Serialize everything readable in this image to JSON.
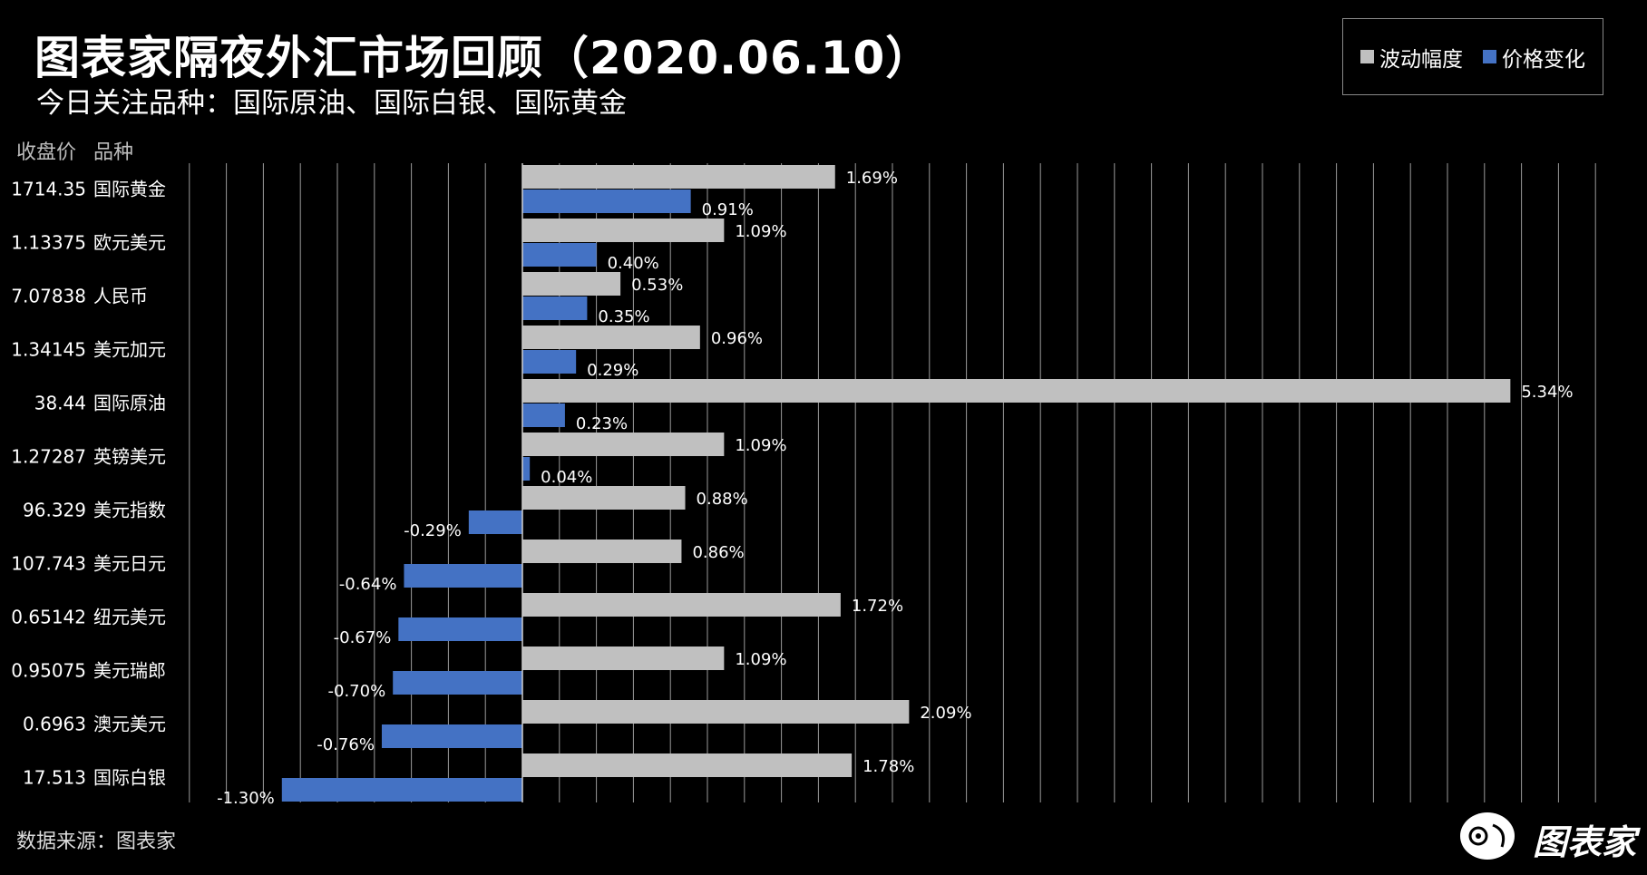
{
  "header": {
    "title": "图表家隔夜外汇市场回顾（2020.06.10）",
    "subtitle": "今日关注品种：国际原油、国际白银、国际黄金"
  },
  "columns": {
    "close_label": "收盘价",
    "category_label": "品种"
  },
  "legend": {
    "items": [
      {
        "label": "波动幅度",
        "color": "#c0c0c0"
      },
      {
        "label": "价格变化",
        "color": "#4472c4"
      }
    ],
    "position": "top-right"
  },
  "footer": {
    "source": "数据来源：图表家",
    "brand": "图表家"
  },
  "chart_data": {
    "type": "bar",
    "orientation": "horizontal",
    "categories": [
      "国际黄金",
      "欧元美元",
      "人民币",
      "美元加元",
      "国际原油",
      "英镑美元",
      "美元指数",
      "美元日元",
      "纽元美元",
      "美元瑞郎",
      "澳元美元",
      "国际白银"
    ],
    "close_prices": [
      "1714.35",
      "1.13375",
      "7.07838",
      "1.34145",
      "38.44",
      "1.27287",
      "96.329",
      "107.743",
      "0.65142",
      "0.95075",
      "0.6963",
      "17.513"
    ],
    "series": [
      {
        "name": "波动幅度",
        "color": "#c0c0c0",
        "values": [
          1.69,
          1.09,
          0.53,
          0.96,
          5.34,
          1.09,
          0.88,
          0.86,
          1.72,
          1.09,
          2.09,
          1.78
        ],
        "labels": [
          "1.69%",
          "1.09%",
          "0.53%",
          "0.96%",
          "5.34%",
          "1.09%",
          "0.88%",
          "0.86%",
          "1.72%",
          "1.09%",
          "2.09%",
          "1.78%"
        ]
      },
      {
        "name": "价格变化",
        "color": "#4472c4",
        "values": [
          0.91,
          0.4,
          0.35,
          0.29,
          0.23,
          0.04,
          -0.29,
          -0.64,
          -0.67,
          -0.7,
          -0.76,
          -1.3
        ],
        "labels": [
          "0.91%",
          "0.40%",
          "0.35%",
          "0.29%",
          "0.23%",
          "0.04%",
          "-0.29%",
          "-0.64%",
          "-0.67%",
          "-0.70%",
          "-0.76%",
          "-1.30%"
        ]
      }
    ],
    "xlim": [
      -1.8,
      5.8
    ],
    "unit": "%",
    "grid": true,
    "grid_step": 0.2
  }
}
